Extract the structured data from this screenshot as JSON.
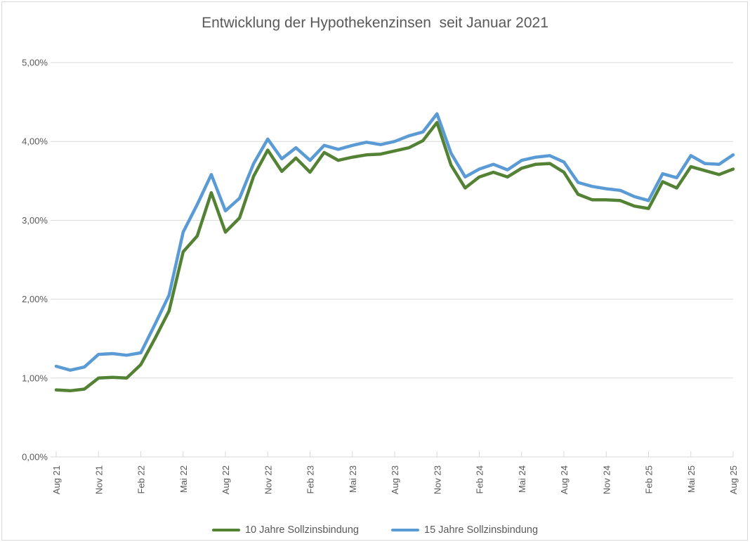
{
  "title": "Entwicklung der Hypothekenzinsen  seit Januar 2021",
  "colors": {
    "series_10_jahre": "#548235",
    "series_15_jahre": "#5B9BD5",
    "gridline": "#D9D9D9",
    "axis_text": "#595959",
    "title_text": "#595959",
    "background": "#FFFFFF"
  },
  "legend": {
    "items": [
      {
        "label": "10 Jahre Sollzinsbindung",
        "color": "#548235"
      },
      {
        "label": "15 Jahre Sollzinsbindung",
        "color": "#5B9BD5"
      }
    ],
    "position": "bottom"
  },
  "chart_data": {
    "type": "line",
    "title": "Entwicklung der Hypothekenzinsen  seit Januar 2021",
    "xlabel": "",
    "ylabel": "",
    "ylim": [
      0,
      5
    ],
    "grid": true,
    "legend_position": "bottom",
    "x_unit": "month",
    "x_tick_every": 3,
    "x_tick_labels": [
      "Aug 21",
      "Nov 21",
      "Feb 22",
      "Mai 22",
      "Aug 22",
      "Nov 22",
      "Feb 23",
      "Mai 23",
      "Aug 23",
      "Nov 23",
      "Feb 24",
      "Mai 24",
      "Aug 24",
      "Nov 24",
      "Feb 25",
      "Mai 25",
      "Aug 25"
    ],
    "y_tick_labels": [
      "0,00%",
      "1,00%",
      "2,00%",
      "3,00%",
      "4,00%",
      "5,00%"
    ],
    "series": [
      {
        "name": "10 Jahre Sollzinsbindung",
        "color": "#548235",
        "values": [
          0.85,
          0.84,
          0.86,
          1.0,
          1.01,
          1.0,
          1.17,
          1.5,
          1.85,
          2.6,
          2.8,
          3.35,
          2.85,
          3.03,
          3.56,
          3.89,
          3.62,
          3.79,
          3.61,
          3.86,
          3.76,
          3.8,
          3.83,
          3.84,
          3.88,
          3.92,
          4.01,
          4.24,
          3.7,
          3.41,
          3.55,
          3.61,
          3.55,
          3.66,
          3.71,
          3.72,
          3.61,
          3.33,
          3.26,
          3.26,
          3.25,
          3.18,
          3.15,
          3.49,
          3.41,
          3.68,
          3.63,
          3.58,
          3.65
        ]
      },
      {
        "name": "15 Jahre Sollzinsbindung",
        "color": "#5B9BD5",
        "values": [
          1.15,
          1.1,
          1.14,
          1.3,
          1.31,
          1.29,
          1.32,
          1.68,
          2.05,
          2.85,
          3.2,
          3.58,
          3.12,
          3.28,
          3.72,
          4.03,
          3.78,
          3.92,
          3.76,
          3.95,
          3.9,
          3.95,
          3.99,
          3.96,
          4.0,
          4.07,
          4.12,
          4.35,
          3.85,
          3.55,
          3.65,
          3.71,
          3.64,
          3.76,
          3.8,
          3.82,
          3.74,
          3.48,
          3.43,
          3.4,
          3.38,
          3.3,
          3.25,
          3.59,
          3.54,
          3.82,
          3.72,
          3.71,
          3.83
        ]
      }
    ]
  }
}
